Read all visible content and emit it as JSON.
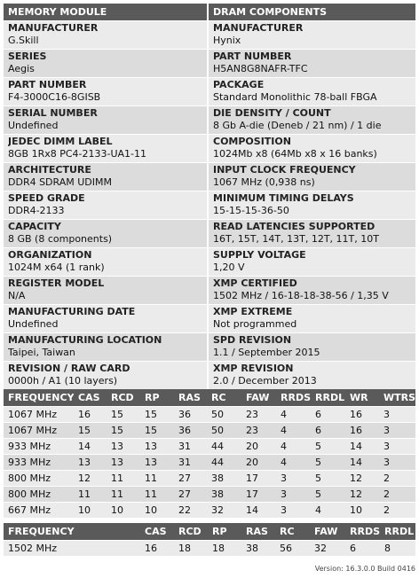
{
  "headers": {
    "left": "MEMORY MODULE",
    "right": "DRAM COMPONENTS"
  },
  "rows": [
    {
      "l_label": "MANUFACTURER",
      "l_value": "G.Skill",
      "r_label": "MANUFACTURER",
      "r_value": "Hynix"
    },
    {
      "l_label": "SERIES",
      "l_value": "Aegis",
      "r_label": "PART NUMBER",
      "r_value": "H5AN8G8NAFR-TFC"
    },
    {
      "l_label": "PART NUMBER",
      "l_value": "F4-3000C16-8GISB",
      "r_label": "PACKAGE",
      "r_value": "Standard Monolithic 78-ball FBGA"
    },
    {
      "l_label": "SERIAL NUMBER",
      "l_value": "Undefined",
      "r_label": "DIE DENSITY / COUNT",
      "r_value": "8 Gb A-die (Deneb / 21 nm) / 1 die"
    },
    {
      "l_label": "JEDEC DIMM LABEL",
      "l_value": "8GB 1Rx8 PC4-2133-UA1-11",
      "r_label": "COMPOSITION",
      "r_value": "1024Mb x8 (64Mb x8 x 16 banks)"
    },
    {
      "l_label": "ARCHITECTURE",
      "l_value": "DDR4 SDRAM UDIMM",
      "r_label": "INPUT CLOCK FREQUENCY",
      "r_value": "1067 MHz (0,938 ns)"
    },
    {
      "l_label": "SPEED GRADE",
      "l_value": "DDR4-2133",
      "r_label": "MINIMUM TIMING DELAYS",
      "r_value": "15-15-15-36-50"
    },
    {
      "l_label": "CAPACITY",
      "l_value": "8 GB (8 components)",
      "r_label": "READ LATENCIES SUPPORTED",
      "r_value": "16T, 15T, 14T, 13T, 12T, 11T, 10T"
    },
    {
      "l_label": "ORGANIZATION",
      "l_value": "1024M x64 (1 rank)",
      "r_label": "SUPPLY VOLTAGE",
      "r_value": "1,20 V"
    },
    {
      "l_label": "REGISTER MODEL",
      "l_value": "N/A",
      "r_label": "XMP CERTIFIED",
      "r_value": "1502 MHz / 16-18-18-38-56 / 1,35 V"
    },
    {
      "l_label": "MANUFACTURING DATE",
      "l_value": "Undefined",
      "r_label": "XMP EXTREME",
      "r_value": "Not programmed"
    },
    {
      "l_label": "MANUFACTURING LOCATION",
      "l_value": "Taipei, Taiwan",
      "r_label": "SPD REVISION",
      "r_value": "1.1 / September 2015"
    },
    {
      "l_label": "REVISION / RAW CARD",
      "l_value": "0000h / A1 (10 layers)",
      "r_label": "XMP REVISION",
      "r_value": "2.0 / December 2013"
    }
  ],
  "timings": {
    "headers": [
      "FREQUENCY",
      "CAS",
      "RCD",
      "RP",
      "RAS",
      "RC",
      "FAW",
      "RRDS",
      "RRDL",
      "WR",
      "WTRS"
    ],
    "rows": [
      [
        "1067 MHz",
        "16",
        "15",
        "15",
        "36",
        "50",
        "23",
        "4",
        "6",
        "16",
        "3"
      ],
      [
        "1067 MHz",
        "15",
        "15",
        "15",
        "36",
        "50",
        "23",
        "4",
        "6",
        "16",
        "3"
      ],
      [
        "933 MHz",
        "14",
        "13",
        "13",
        "31",
        "44",
        "20",
        "4",
        "5",
        "14",
        "3"
      ],
      [
        "933 MHz",
        "13",
        "13",
        "13",
        "31",
        "44",
        "20",
        "4",
        "5",
        "14",
        "3"
      ],
      [
        "800 MHz",
        "12",
        "11",
        "11",
        "27",
        "38",
        "17",
        "3",
        "5",
        "12",
        "2"
      ],
      [
        "800 MHz",
        "11",
        "11",
        "11",
        "27",
        "38",
        "17",
        "3",
        "5",
        "12",
        "2"
      ],
      [
        "667 MHz",
        "10",
        "10",
        "10",
        "22",
        "32",
        "14",
        "3",
        "4",
        "10",
        "2"
      ]
    ]
  },
  "xmp": {
    "headers": [
      "FREQUENCY",
      "CAS",
      "RCD",
      "RP",
      "RAS",
      "RC",
      "FAW",
      "RRDS",
      "RRDL"
    ],
    "rows": [
      [
        "1502 MHz",
        "16",
        "18",
        "18",
        "38",
        "56",
        "32",
        "6",
        "8"
      ]
    ]
  },
  "version": "Version: 16.3.0.0 Build 0416"
}
